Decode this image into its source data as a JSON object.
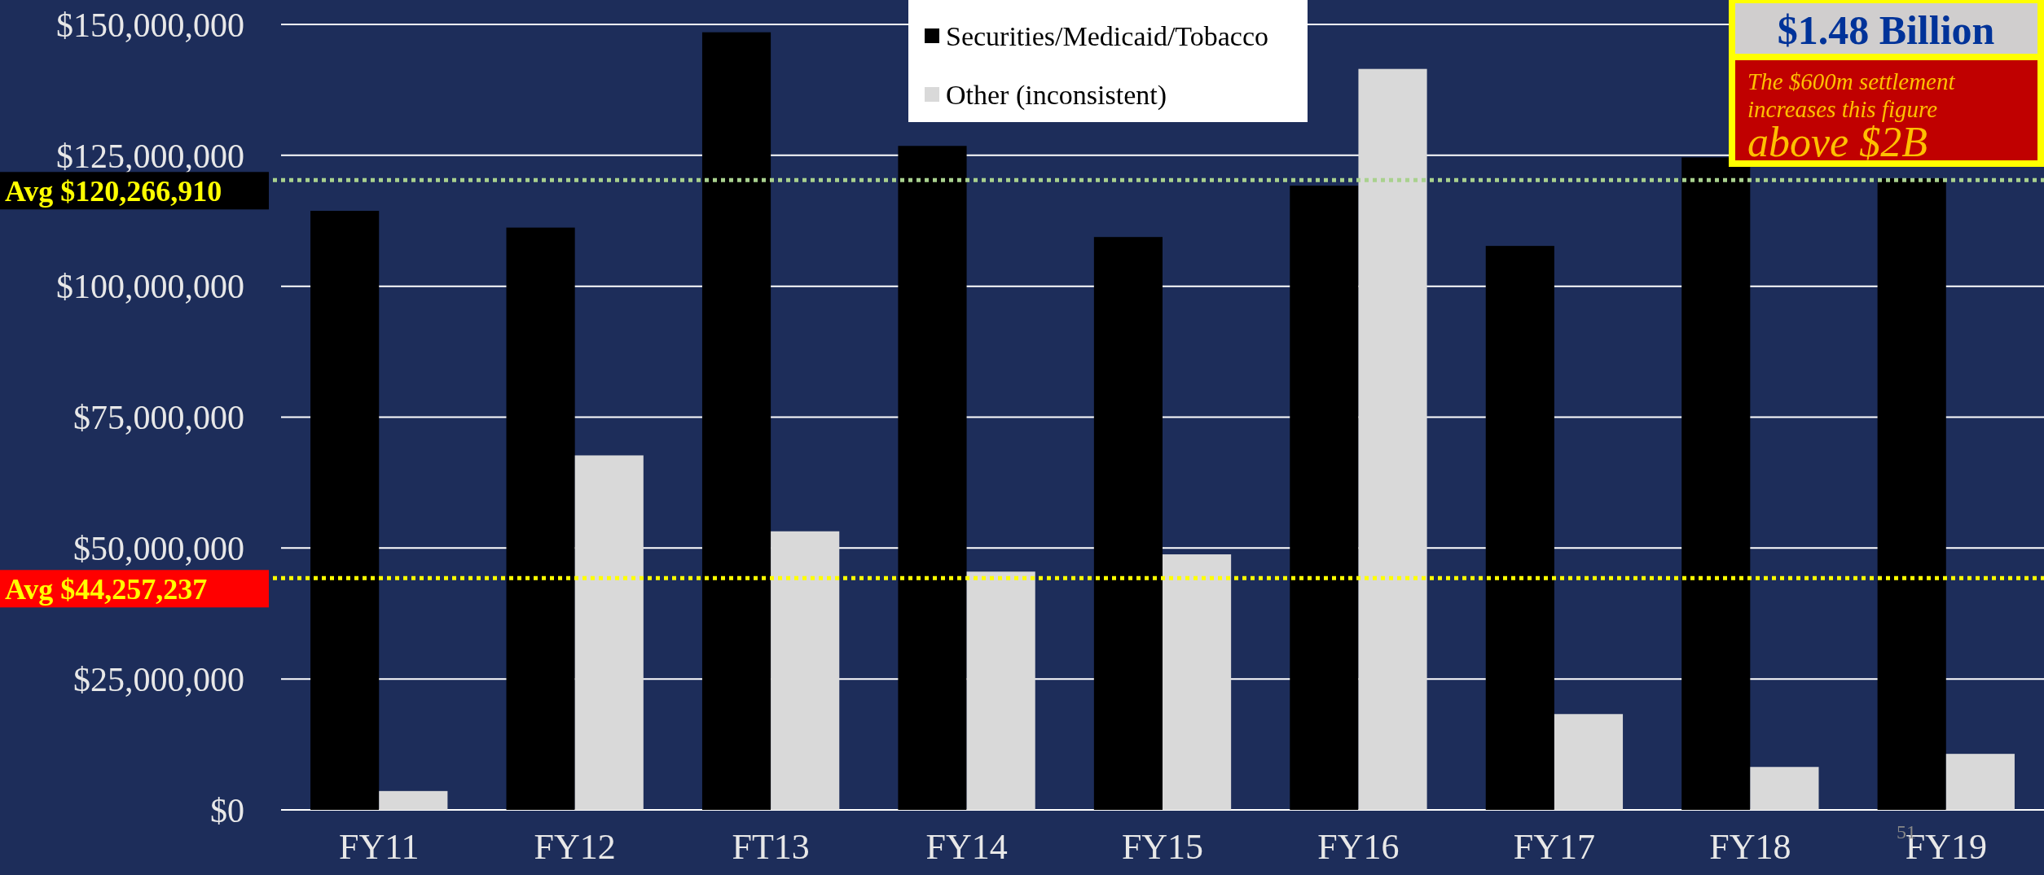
{
  "chart_data": {
    "type": "bar",
    "categories": [
      "FY11",
      "FY12",
      "FT13",
      "FY14",
      "FY15",
      "FY16",
      "FY17",
      "FY18",
      "FY19"
    ],
    "series": [
      {
        "name": "Securities/Medicaid/Tobacco",
        "color": "#000000",
        "values": [
          114400000,
          111200000,
          148500000,
          126800000,
          109400000,
          119200000,
          107700000,
          124600000,
          120600000
        ]
      },
      {
        "name": "Other (inconsistent)",
        "color": "#d9d9d9",
        "values": [
          3600000,
          67700000,
          53200000,
          45500000,
          48800000,
          141500000,
          18300000,
          8200000,
          10700000
        ]
      }
    ],
    "ylim": [
      0,
      150000000
    ],
    "yticks": [
      {
        "value": 0,
        "label": "$0"
      },
      {
        "value": 25000000,
        "label": "$25,000,000"
      },
      {
        "value": 50000000,
        "label": "$50,000,000"
      },
      {
        "value": 75000000,
        "label": "$75,000,000"
      },
      {
        "value": 100000000,
        "label": "$100,000,000"
      },
      {
        "value": 125000000,
        "label": "$125,000,000"
      },
      {
        "value": 150000000,
        "label": "$150,000,000"
      }
    ],
    "grid": "y",
    "legend": "top",
    "ref_lines": [
      {
        "axis": "y",
        "value": 120266910,
        "label": "Avg $120,266,910",
        "color": "#a9d18e",
        "line_style": "dotted"
      },
      {
        "axis": "y",
        "value": 44257237,
        "label": "Avg $44,257,237",
        "color": "#ffff00",
        "line_style": "dotted"
      }
    ],
    "annotations": [
      "$1.48 Billion",
      "The $600m settlement increases this figure",
      "above $2B",
      "51"
    ]
  }
}
